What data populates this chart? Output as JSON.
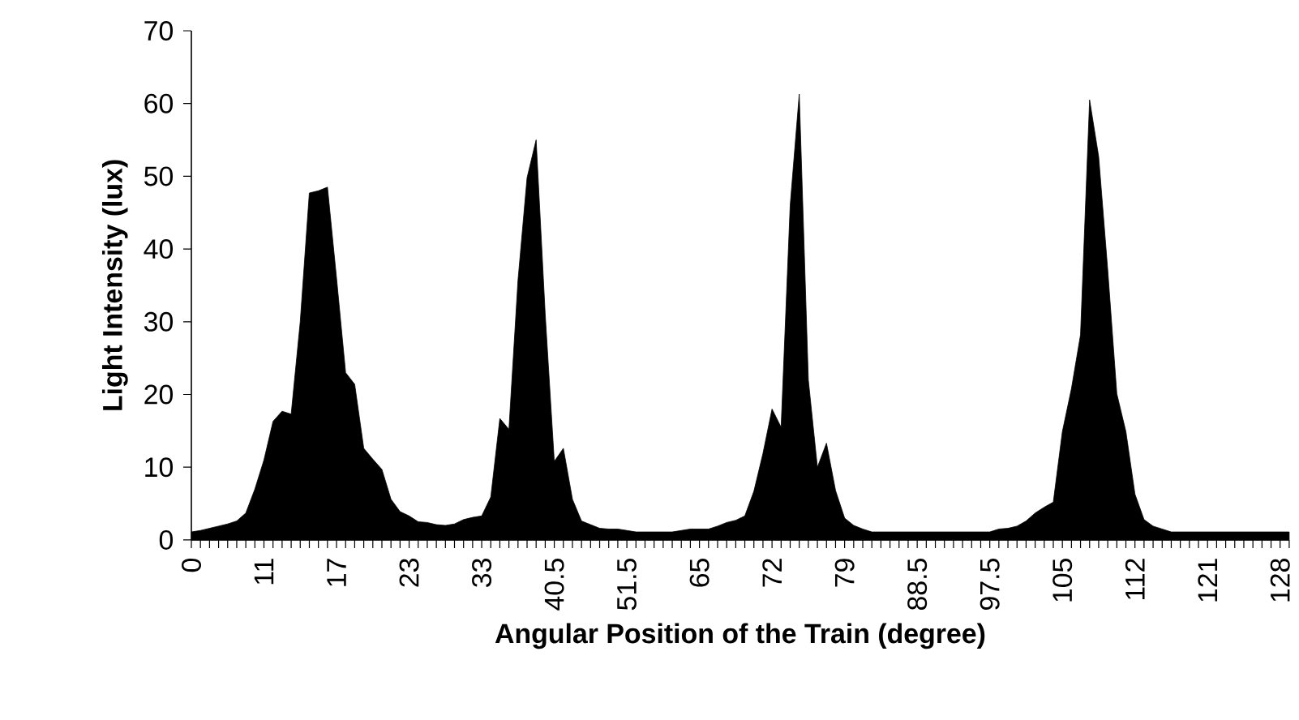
{
  "chart_data": {
    "type": "area",
    "xlabel": "Angular Position of the Train (degree)",
    "ylabel": "Light Intensity (lux)",
    "categories": [
      "0",
      null,
      null,
      null,
      null,
      null,
      null,
      null,
      "11",
      null,
      null,
      null,
      null,
      null,
      null,
      null,
      "17",
      null,
      null,
      null,
      null,
      null,
      null,
      null,
      "23",
      null,
      null,
      null,
      null,
      null,
      null,
      null,
      "33",
      null,
      null,
      null,
      null,
      null,
      null,
      null,
      "40.5",
      null,
      null,
      null,
      null,
      null,
      null,
      null,
      "51.5",
      null,
      null,
      null,
      null,
      null,
      null,
      null,
      "65",
      null,
      null,
      null,
      null,
      null,
      null,
      null,
      "72",
      null,
      null,
      null,
      null,
      null,
      null,
      null,
      "79",
      null,
      null,
      null,
      null,
      null,
      null,
      null,
      "88.5",
      null,
      null,
      null,
      null,
      null,
      null,
      null,
      "97.5",
      null,
      null,
      null,
      null,
      null,
      null,
      null,
      "105",
      null,
      null,
      null,
      null,
      null,
      null,
      null,
      "112",
      null,
      null,
      null,
      null,
      null,
      null,
      null,
      "121",
      null,
      null,
      null,
      null,
      null,
      null,
      null,
      "128",
      null
    ],
    "values": [
      1.1,
      1.3,
      1.6,
      1.9,
      2.2,
      2.6,
      3.7,
      7,
      11,
      16.3,
      17.7,
      17.3,
      30,
      47.7,
      48,
      48.5,
      36,
      23,
      21.4,
      12.6,
      11.1,
      9.7,
      5.6,
      3.9,
      3.3,
      2.5,
      2.4,
      2.1,
      2,
      2.2,
      2.8,
      3.1,
      3.3,
      5.9,
      16.7,
      15.2,
      35.7,
      49.8,
      55,
      31,
      10.8,
      12.6,
      5.6,
      2.6,
      2.1,
      1.6,
      1.5,
      1.5,
      1.3,
      1.1,
      1.1,
      1.1,
      1.1,
      1.1,
      1.3,
      1.5,
      1.5,
      1.5,
      1.9,
      2.4,
      2.7,
      3.3,
      6.7,
      11.9,
      18,
      15.5,
      46,
      61.3,
      22,
      10,
      13.3,
      6.8,
      3,
      2,
      1.5,
      1.1,
      1.1,
      1.1,
      1.1,
      1.1,
      1.1,
      1.1,
      1.1,
      1.1,
      1.1,
      1.1,
      1.1,
      1.1,
      1.1,
      1.5,
      1.6,
      1.9,
      2.6,
      3.7,
      4.5,
      5.2,
      14.9,
      20.8,
      28.2,
      60.5,
      52.7,
      37.1,
      20.1,
      14.9,
      6.3,
      2.8,
      1.9,
      1.5,
      1.1,
      1.1,
      1.1,
      1.1,
      1.1,
      1.1,
      1.1,
      1.1,
      1.1,
      1.1,
      1.1,
      1.1,
      1.1,
      1.1
    ],
    "color": "#000000",
    "ylim": [
      0,
      70
    ],
    "yticks": [
      0,
      10,
      20,
      30,
      40,
      50,
      60,
      70
    ]
  }
}
